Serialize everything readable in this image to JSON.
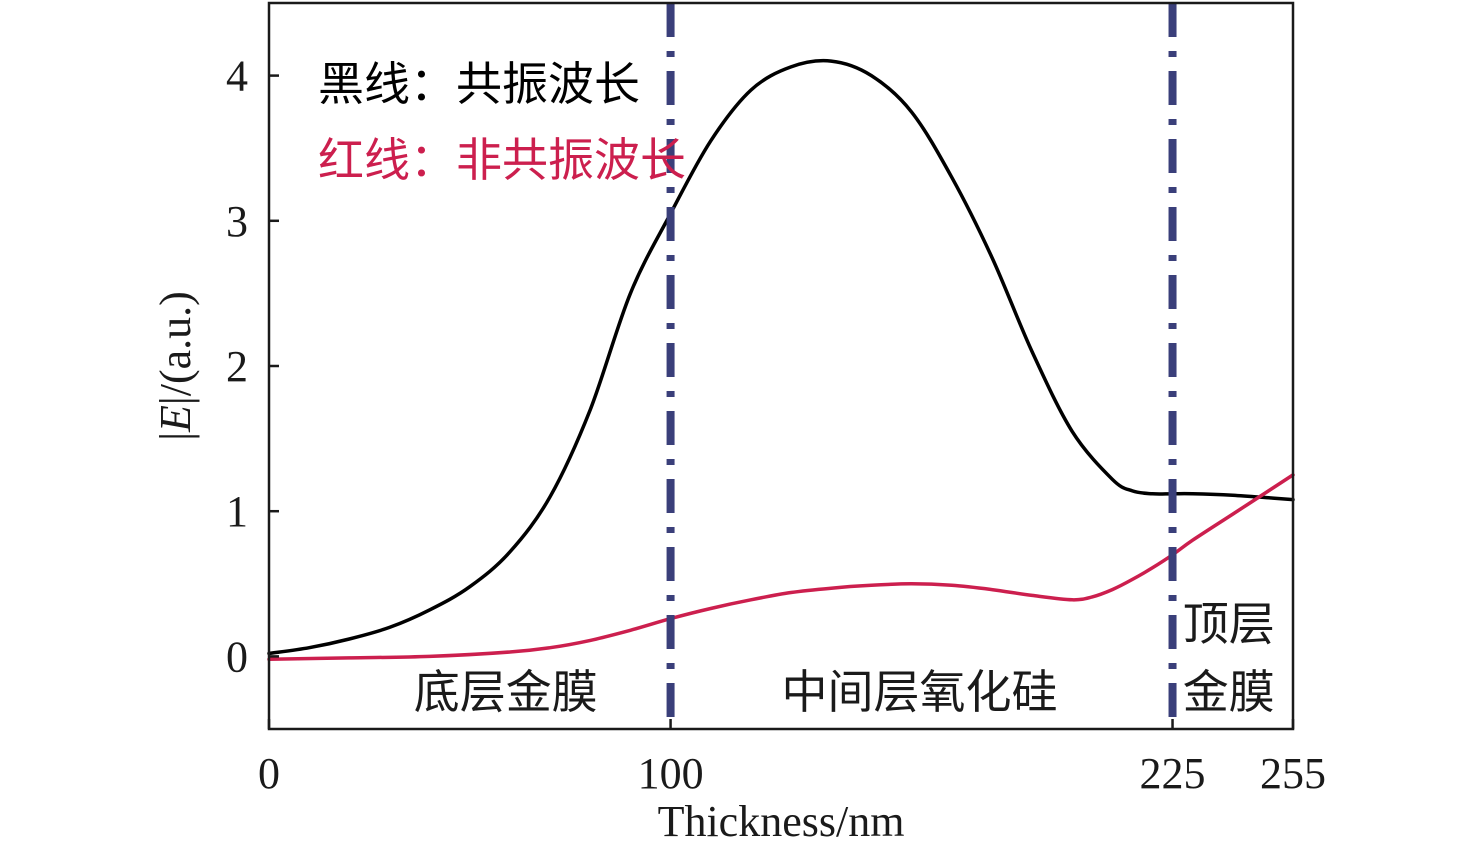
{
  "chart_data": {
    "type": "line",
    "xlabel": "Thickness/nm",
    "ylabel_prefix": "|",
    "ylabel_italic": "E",
    "ylabel_suffix": "|/(a.u.)",
    "xlim": [
      0,
      255
    ],
    "ylim": [
      -0.5,
      4.5
    ],
    "xticks": [
      0,
      100,
      225,
      255
    ],
    "yticks": [
      0,
      1,
      2,
      3,
      4
    ],
    "grid": false,
    "legend": {
      "placement": "top-left",
      "entries": [
        {
          "label": "黑线：共振波长",
          "color": "#000000"
        },
        {
          "label": "红线：非共振波长",
          "color": "#cc1f4e"
        }
      ]
    },
    "vlines": [
      100,
      225
    ],
    "vline_color": "#3a3f7a",
    "regions": [
      {
        "label": "底层金膜",
        "x": 50
      },
      {
        "label": "中间层氧化硅",
        "x": 162
      },
      {
        "label": "顶层",
        "x": 240
      },
      {
        "label": "金膜",
        "x": 240
      }
    ],
    "series": [
      {
        "color": "#000000",
        "x": [
          0,
          10,
          20,
          30,
          40,
          50,
          60,
          70,
          80,
          90,
          100,
          110,
          120,
          130,
          140,
          150,
          160,
          170,
          180,
          190,
          200,
          210,
          215,
          220,
          225,
          230,
          240,
          250,
          255
        ],
        "y": [
          0.02,
          0.06,
          0.12,
          0.2,
          0.32,
          0.48,
          0.72,
          1.1,
          1.7,
          2.5,
          3.05,
          3.55,
          3.9,
          4.06,
          4.1,
          4.0,
          3.75,
          3.3,
          2.75,
          2.1,
          1.55,
          1.22,
          1.14,
          1.12,
          1.12,
          1.12,
          1.11,
          1.09,
          1.08
        ]
      },
      {
        "color": "#cc1f4e",
        "x": [
          0,
          20,
          40,
          60,
          70,
          80,
          90,
          100,
          110,
          120,
          130,
          140,
          150,
          160,
          170,
          180,
          190,
          200,
          205,
          210,
          215,
          220,
          225,
          230,
          240,
          250,
          255
        ],
        "y": [
          -0.02,
          -0.01,
          0.0,
          0.03,
          0.06,
          0.11,
          0.18,
          0.26,
          0.33,
          0.39,
          0.44,
          0.47,
          0.49,
          0.5,
          0.49,
          0.46,
          0.42,
          0.39,
          0.41,
          0.46,
          0.53,
          0.61,
          0.7,
          0.8,
          0.98,
          1.16,
          1.25
        ]
      }
    ]
  }
}
